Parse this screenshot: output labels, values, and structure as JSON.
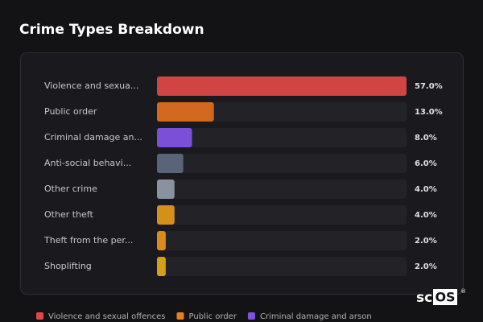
{
  "chart_data": {
    "type": "hbar",
    "title": "Crime Types Breakdown",
    "categories": [
      "Violence and sexua...",
      "Public order",
      "Criminal damage an...",
      "Anti-social behavi...",
      "Other crime",
      "Other theft",
      "Theft from the per...",
      "Shoplifting"
    ],
    "values": [
      57,
      13,
      8,
      6,
      4,
      4,
      2,
      2
    ],
    "value_labels": [
      "57.0%",
      "13.0%",
      "8.0%",
      "6.0%",
      "4.0%",
      "4.0%",
      "2.0%",
      "2.0%"
    ],
    "colors": [
      "#d04444",
      "#d2691e",
      "#7b4fd6",
      "#5a6478",
      "#8a92a0",
      "#d4901a",
      "#d98c1c",
      "#d4a017"
    ],
    "xlim": [
      0,
      57
    ],
    "legend": [
      {
        "name": "Violence and sexual offences",
        "color": "#e04848"
      },
      {
        "name": "Public order",
        "color": "#e88020"
      },
      {
        "name": "Criminal damage and arson",
        "color": "#8050e0"
      }
    ]
  },
  "watermark": {
    "prefix": "sc",
    "boxed": "OS",
    "mark": "®"
  }
}
